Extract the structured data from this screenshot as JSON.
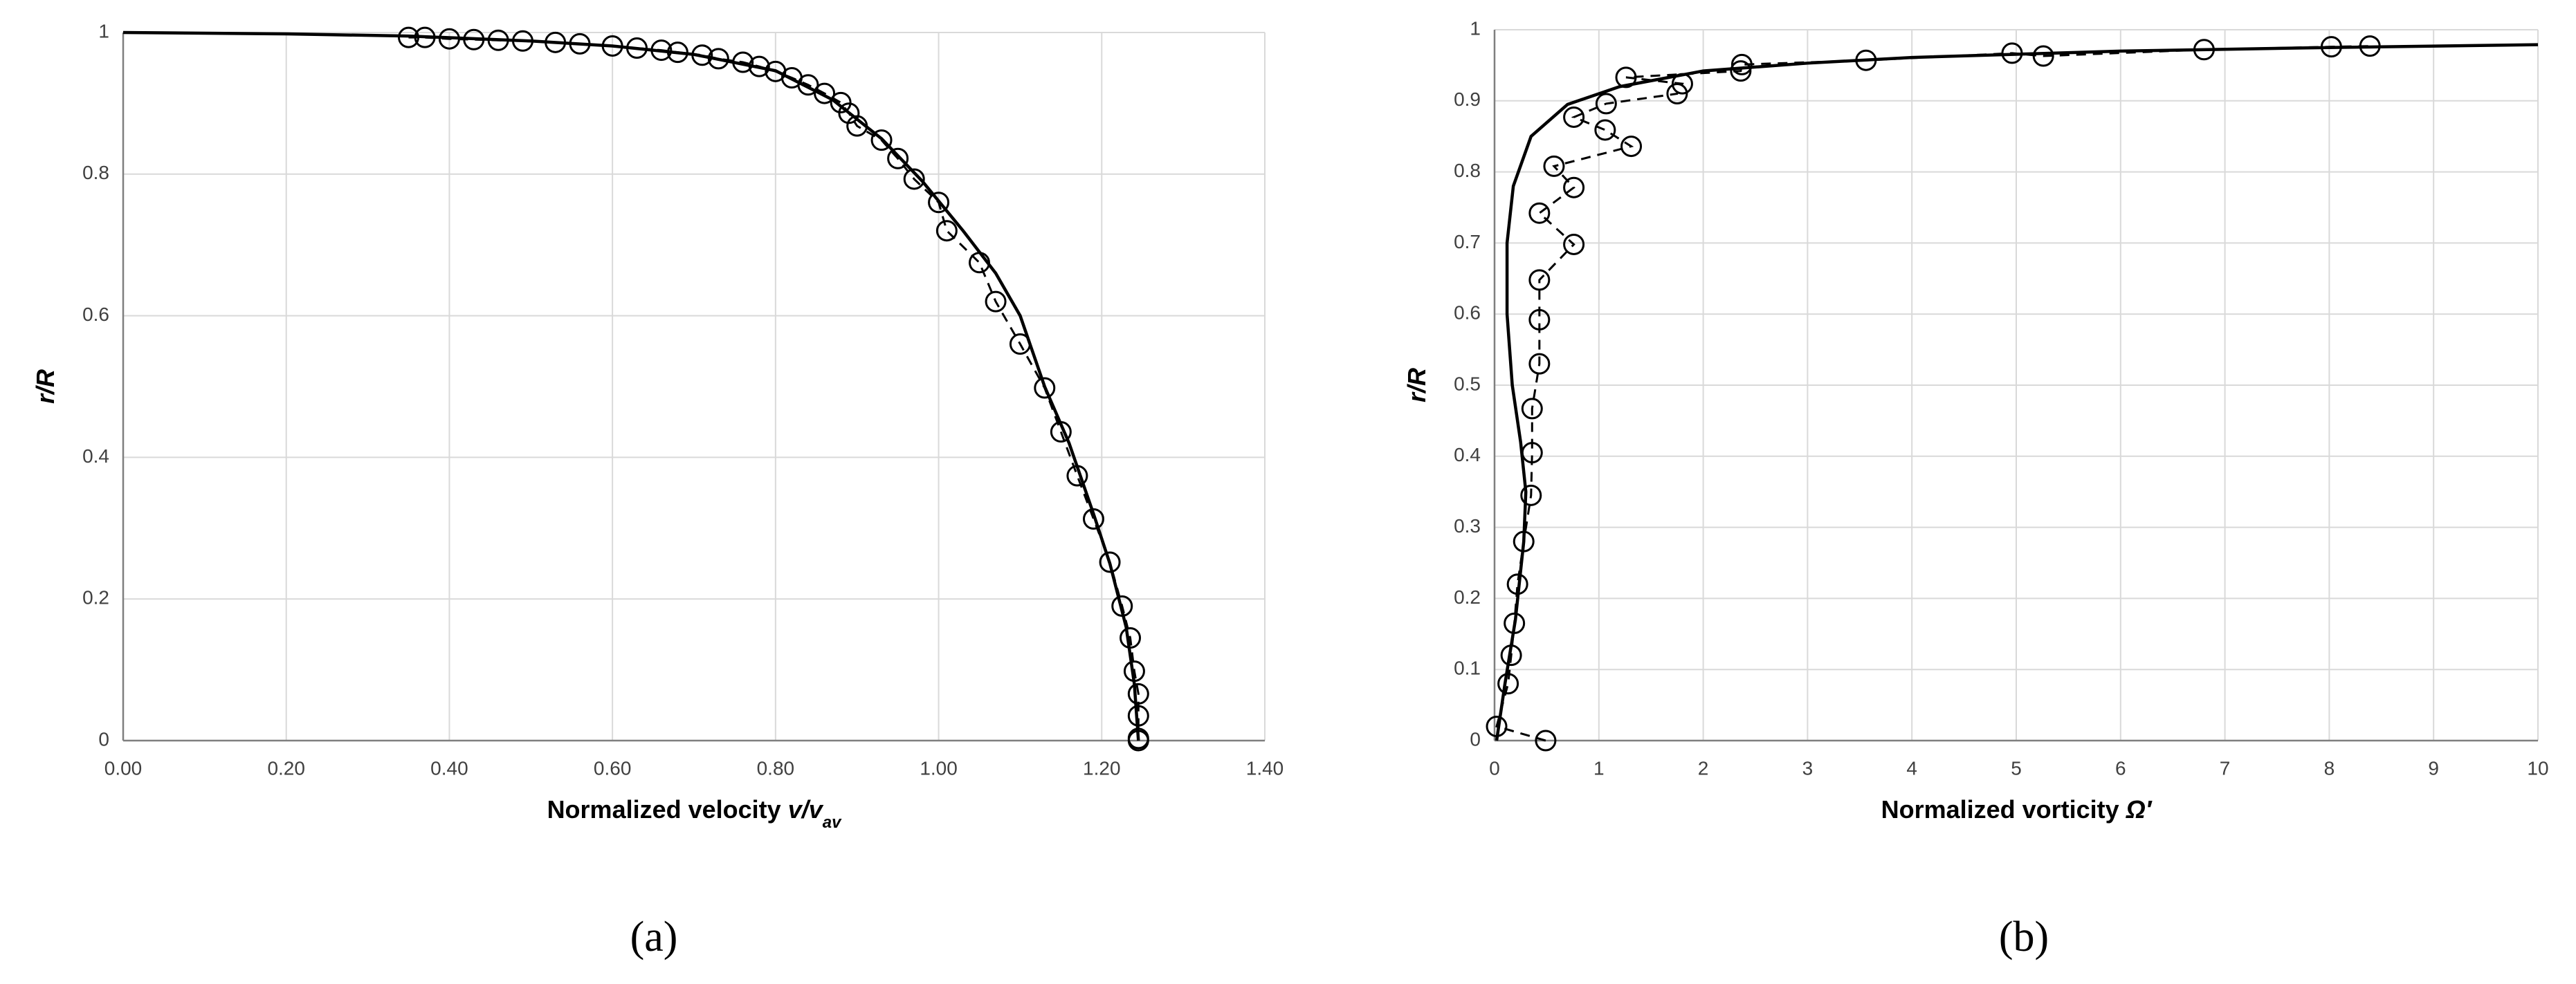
{
  "chart_data": [
    {
      "type": "line",
      "label": "(a)",
      "ylabel": "r/R",
      "xlabel": [
        "Normalized velocity ",
        "v/v",
        "av"
      ],
      "xlim": [
        0,
        1.4
      ],
      "ylim": [
        0,
        1
      ],
      "grid": true,
      "xticks": [
        {
          "value": 0,
          "label": "0.00"
        },
        {
          "value": 0.2,
          "label": "0.20"
        },
        {
          "value": 0.4,
          "label": "0.40"
        },
        {
          "value": 0.6,
          "label": "0.60"
        },
        {
          "value": 0.8,
          "label": "0.80"
        },
        {
          "value": 1,
          "label": "1.00"
        },
        {
          "value": 1.2,
          "label": "1.20"
        },
        {
          "value": 1.4,
          "label": "1.40"
        }
      ],
      "yticks": [
        0,
        0.2,
        0.4,
        0.6,
        0.8,
        1
      ],
      "series": [
        {
          "color": "#000000",
          "dash": false,
          "marker": "none",
          "x": [
            0,
            0.2,
            0.35,
            0.5,
            0.6,
            0.7,
            0.8,
            0.87,
            0.93,
            0.98,
            1.03,
            1.07,
            1.1,
            1.13,
            1.16,
            1.19,
            1.21,
            1.23,
            1.24,
            1.245
          ],
          "values": [
            1,
            0.998,
            0.995,
            0.988,
            0.981,
            0.969,
            0.946,
            0.905,
            0.85,
            0.79,
            0.72,
            0.66,
            0.6,
            0.5,
            0.42,
            0.32,
            0.25,
            0.16,
            0.08,
            0
          ]
        },
        {
          "color": "#000000",
          "dash": true,
          "marker": "circle",
          "x": [
            0.35,
            0.37,
            0.4,
            0.43,
            0.46,
            0.49,
            0.53,
            0.56,
            0.6,
            0.63,
            0.66,
            0.68,
            0.71,
            0.73,
            0.76,
            0.78,
            0.8,
            0.82,
            0.84,
            0.86,
            0.88,
            0.89,
            0.9,
            0.93,
            0.95,
            0.97,
            1.0,
            1.01,
            1.05,
            1.07,
            1.1,
            1.13,
            1.15,
            1.17,
            1.19,
            1.21,
            1.225,
            1.235,
            1.24,
            1.245,
            1.245,
            1.245,
            1.245
          ],
          "values": [
            0.993,
            0.993,
            0.991,
            0.99,
            0.989,
            0.988,
            0.986,
            0.984,
            0.981,
            0.978,
            0.975,
            0.972,
            0.968,
            0.963,
            0.958,
            0.952,
            0.945,
            0.936,
            0.926,
            0.914,
            0.901,
            0.886,
            0.868,
            0.848,
            0.822,
            0.793,
            0.76,
            0.72,
            0.675,
            0.62,
            0.56,
            0.498,
            0.436,
            0.374,
            0.313,
            0.252,
            0.19,
            0.145,
            0.098,
            0.066,
            0.035,
            0.003,
            0
          ]
        }
      ]
    },
    {
      "type": "line",
      "label": "(b)",
      "ylabel": "r/R",
      "xlabel": [
        "Normalized vorticity ",
        "Ω′"
      ],
      "xlim": [
        0,
        10
      ],
      "ylim": [
        0,
        1
      ],
      "grid": true,
      "xticks": [
        0,
        1,
        2,
        3,
        4,
        5,
        6,
        7,
        8,
        9,
        10
      ],
      "yticks": [
        0,
        0.1,
        0.2,
        0.3,
        0.4,
        0.5,
        0.6,
        0.7,
        0.8,
        0.9,
        1
      ],
      "series": [
        {
          "color": "#000000",
          "dash": false,
          "marker": "none",
          "x": [
            0.02,
            0.1,
            0.2,
            0.28,
            0.3,
            0.25,
            0.17,
            0.12,
            0.12,
            0.18,
            0.35,
            0.7,
            1.2,
            2,
            3,
            4,
            6,
            8,
            10
          ],
          "values": [
            0,
            0.08,
            0.17,
            0.28,
            0.35,
            0.42,
            0.5,
            0.6,
            0.7,
            0.78,
            0.85,
            0.895,
            0.92,
            0.942,
            0.953,
            0.961,
            0.97,
            0.975,
            0.979
          ]
        },
        {
          "color": "#000000",
          "dash": true,
          "marker": "circle",
          "x": [
            0.49,
            0.02,
            0.13,
            0.16,
            0.19,
            0.22,
            0.28,
            0.35,
            0.36,
            0.36,
            0.43,
            0.43,
            0.43,
            0.76,
            0.43,
            0.76,
            0.57,
            1.31,
            1.06,
            0.76,
            1.07,
            1.75,
            1.8,
            1.26,
            2.36,
            2.37,
            3.56,
            4.96,
            5.26,
            6.8,
            8.02,
            8.39
          ],
          "values": [
            0,
            0.02,
            0.08,
            0.12,
            0.165,
            0.22,
            0.28,
            0.345,
            0.405,
            0.467,
            0.53,
            0.592,
            0.648,
            0.698,
            0.742,
            0.778,
            0.808,
            0.836,
            0.859,
            0.877,
            0.896,
            0.91,
            0.924,
            0.933,
            0.942,
            0.951,
            0.957,
            0.967,
            0.963,
            0.972,
            0.976,
            0.977
          ]
        }
      ]
    }
  ]
}
